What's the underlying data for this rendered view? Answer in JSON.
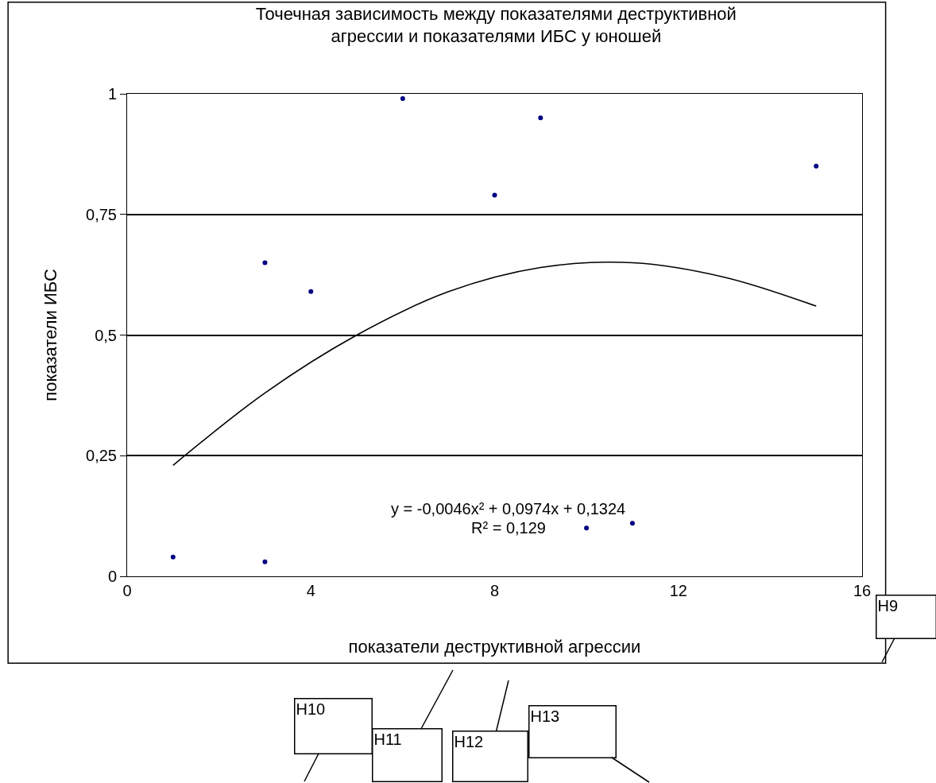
{
  "chart_data": {
    "type": "scatter",
    "title": "Точечная зависимость между показателями деструктивной агрессии и показателями ИБС у юношей",
    "xlabel": "показатели деструктивной агрессии",
    "ylabel": "показатели ИБС",
    "series": [
      {
        "color": "#000080",
        "marker": "circle",
        "x": [
          1,
          3,
          3,
          4,
          6,
          8,
          9,
          10,
          11,
          15
        ],
        "values": [
          0.04,
          0.03,
          0.65,
          0.59,
          0.99,
          0.79,
          0.95,
          0.1,
          0.11,
          0.85
        ]
      },
      {
        "type": "line",
        "color": "#000000",
        "marker": "none",
        "x": [
          1,
          3,
          5,
          7,
          9,
          11,
          13,
          15
        ],
        "values": [
          0.23,
          0.38,
          0.5,
          0.59,
          0.64,
          0.65,
          0.62,
          0.56
        ]
      }
    ],
    "xlim": [
      0,
      16
    ],
    "xticks": [
      0,
      4,
      8,
      12,
      16
    ],
    "ylim": [
      0,
      1
    ],
    "yticks": [
      0,
      {
        "value": 0.25,
        "label": "0,25"
      },
      {
        "value": 0.5,
        "label": "0,5"
      },
      {
        "value": 0.75,
        "label": "0,75"
      },
      1
    ],
    "grid": "y",
    "legend": false,
    "annotations": [
      "y = -0,0046x² + 0,0974x + 0,1324",
      "R² = 0,129",
      "H9",
      "H10",
      "H11",
      "H12",
      "H13"
    ]
  }
}
